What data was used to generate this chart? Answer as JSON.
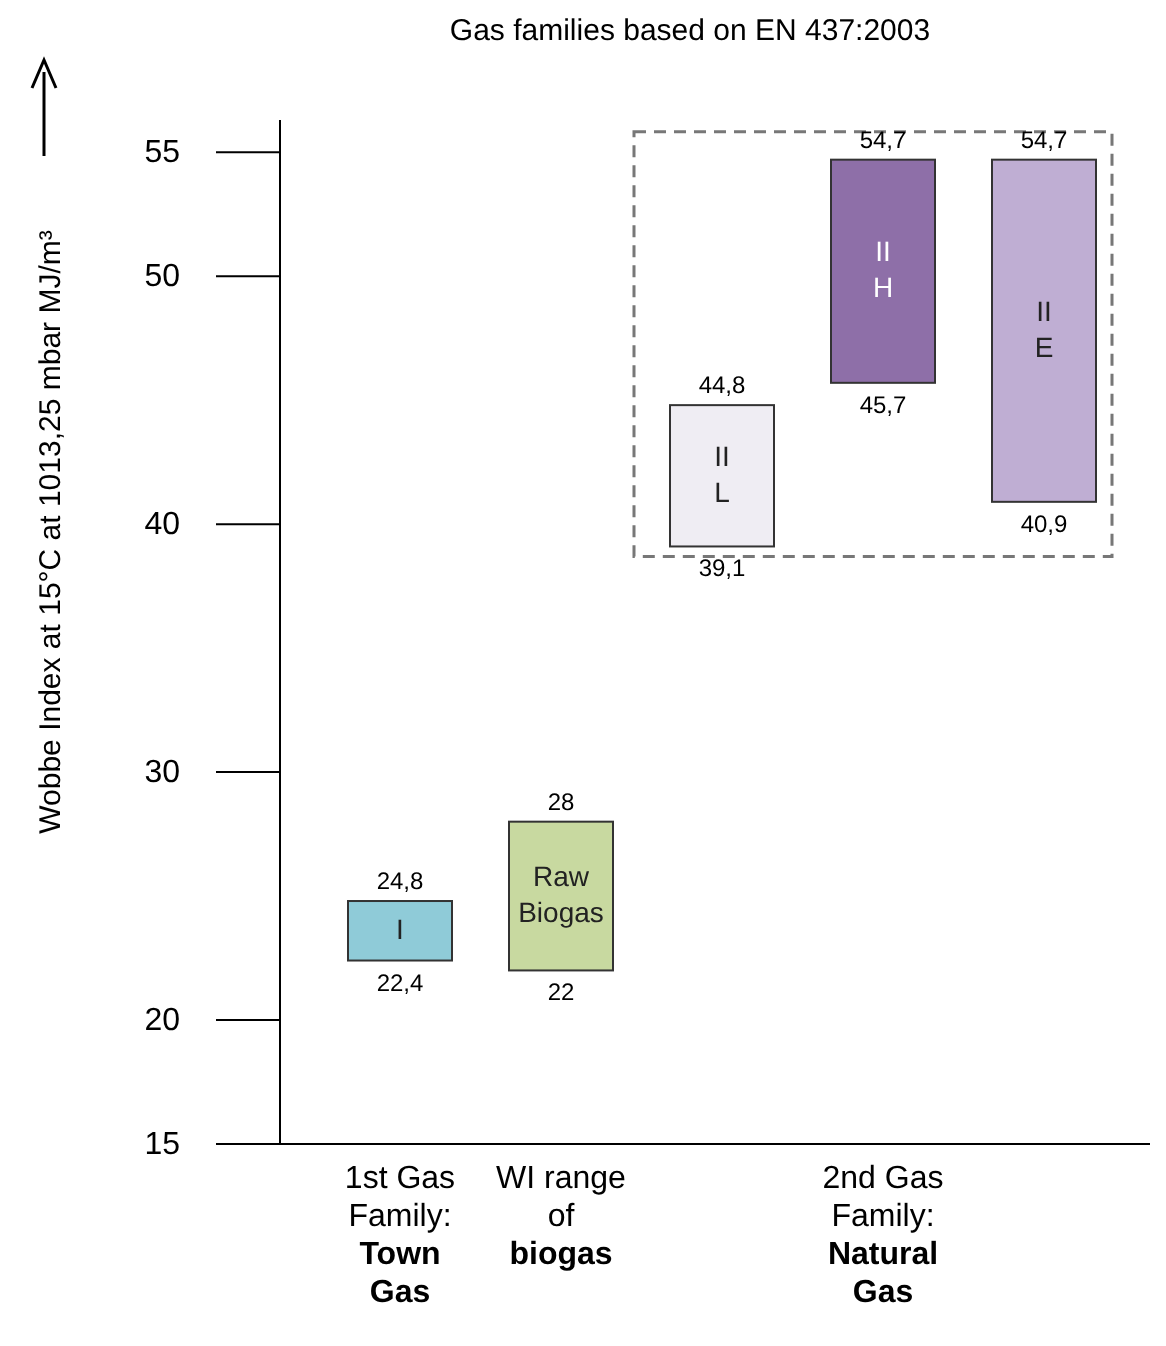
{
  "chart_data": {
    "type": "bar",
    "title": "Gas families based on EN 437:2003",
    "ylabel": "Wobbe Index at 15°C at 1013,25 mbar MJ/m³",
    "categories": [
      "I",
      "Raw\nBiogas",
      "II\nL",
      "II\nH",
      "II\nE"
    ],
    "base": [
      22.4,
      22,
      39.1,
      45.7,
      40.9
    ],
    "values": [
      2.4,
      6,
      5.7,
      9.0,
      13.8
    ],
    "colors": [
      "#8fcbd8",
      "#c8d9a0",
      "#efedf3",
      "#8e6fa8",
      "#bfaed3"
    ],
    "ylim": [
      15,
      56.3
    ],
    "yticks": [
      15,
      20,
      30,
      40,
      50,
      55
    ],
    "annotations": [
      {
        "text": "24,8",
        "x": "I",
        "y": 24.8
      },
      {
        "text": "22,4",
        "x": "I",
        "y": 22.4
      },
      {
        "text": "28",
        "x": "Raw\nBiogas",
        "y": 28
      },
      {
        "text": "22",
        "x": "Raw\nBiogas",
        "y": 22
      },
      {
        "text": "44,8",
        "x": "II\nL",
        "y": 44.8
      },
      {
        "text": "39,1",
        "x": "II\nL",
        "y": 39.1
      },
      {
        "text": "54,7",
        "x": "II\nH",
        "y": 54.7
      },
      {
        "text": "45,7",
        "x": "II\nH",
        "y": 45.7
      },
      {
        "text": "54,7",
        "x": "II\nE",
        "y": 54.7
      },
      {
        "text": "40,9",
        "x": "II\nE",
        "y": 40.9
      },
      "1st Gas\nFamily:\nTown\nGas",
      "WI range\nof\nbiogas",
      "2nd Gas\nFamily:\nNatural\nGas"
    ]
  }
}
